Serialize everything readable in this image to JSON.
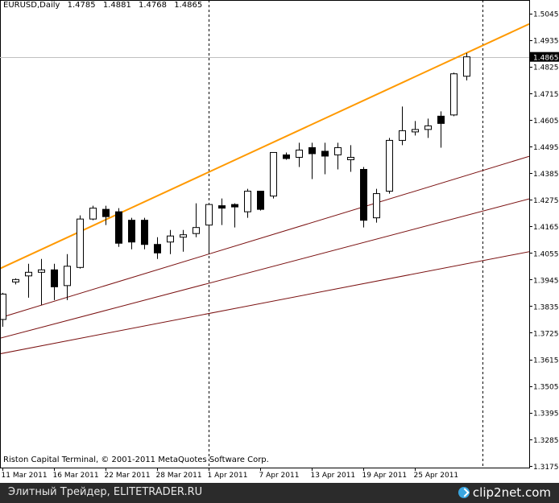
{
  "header": {
    "symbol": "EURUSD,Daily",
    "open": "1.4785",
    "high": "1.4881",
    "low": "1.4768",
    "close": "1.4865"
  },
  "copyright": "Riston Capital Terminal, © 2001-2011 MetaQuotes Software Corp.",
  "footer": {
    "left_text": "Элитный Трейдер, ELITETRADER.RU",
    "brand_text": "clip2net.com",
    "brand_icon": "clip2net-logo-icon"
  },
  "colors": {
    "background": "#ffffff",
    "frame": "#000000",
    "bull_body": "#ffffff",
    "bear_body": "#000000",
    "orange_line": "#ff9900",
    "red_lines": "#7a1010",
    "price_line": "#c0c0c0",
    "footer_bg": "#2b2b2b"
  },
  "chart_data": {
    "type": "candlestick",
    "title": "EURUSD,Daily",
    "y_range": [
      1.3168,
      1.51
    ],
    "y_ticks": [
      "1.5045",
      "1.4935",
      "1.4825",
      "1.4715",
      "1.4605",
      "1.4495",
      "1.4385",
      "1.4275",
      "1.4165",
      "1.4055",
      "1.3945",
      "1.3835",
      "1.3725",
      "1.3615",
      "1.3505",
      "1.3395",
      "1.3285",
      "1.3175"
    ],
    "x_labels": [
      {
        "bar": 0,
        "label": "11 Mar 2011"
      },
      {
        "bar": 4,
        "label": "16 Mar 2011"
      },
      {
        "bar": 8,
        "label": "22 Mar 2011"
      },
      {
        "bar": 12,
        "label": "28 Mar 2011"
      },
      {
        "bar": 16,
        "label": "1 Apr 2011"
      },
      {
        "bar": 20,
        "label": "7 Apr 2011"
      },
      {
        "bar": 24,
        "label": "13 Apr 2011"
      },
      {
        "bar": 28,
        "label": "19 Apr 2011"
      },
      {
        "bar": 32,
        "label": "25 Apr 2011"
      }
    ],
    "current_price": "1.4865",
    "candles": [
      {
        "o": 1.378,
        "h": 1.389,
        "l": 1.375,
        "c": 1.3885
      },
      {
        "o": 1.3935,
        "h": 1.395,
        "l": 1.3925,
        "c": 1.3945
      },
      {
        "o": 1.396,
        "h": 1.401,
        "l": 1.387,
        "c": 1.3975
      },
      {
        "o": 1.3975,
        "h": 1.403,
        "l": 1.384,
        "c": 1.3985
      },
      {
        "o": 1.3985,
        "h": 1.401,
        "l": 1.386,
        "c": 1.3915
      },
      {
        "o": 1.392,
        "h": 1.405,
        "l": 1.386,
        "c": 1.4
      },
      {
        "o": 1.3995,
        "h": 1.421,
        "l": 1.399,
        "c": 1.4195
      },
      {
        "o": 1.4195,
        "h": 1.425,
        "l": 1.419,
        "c": 1.424
      },
      {
        "o": 1.4235,
        "h": 1.425,
        "l": 1.417,
        "c": 1.4205
      },
      {
        "o": 1.4225,
        "h": 1.424,
        "l": 1.408,
        "c": 1.4095
      },
      {
        "o": 1.419,
        "h": 1.42,
        "l": 1.407,
        "c": 1.41
      },
      {
        "o": 1.419,
        "h": 1.42,
        "l": 1.407,
        "c": 1.409
      },
      {
        "o": 1.409,
        "h": 1.412,
        "l": 1.403,
        "c": 1.4055
      },
      {
        "o": 1.41,
        "h": 1.415,
        "l": 1.405,
        "c": 1.4125
      },
      {
        "o": 1.412,
        "h": 1.415,
        "l": 1.406,
        "c": 1.413
      },
      {
        "o": 1.4135,
        "h": 1.426,
        "l": 1.412,
        "c": 1.416
      },
      {
        "o": 1.417,
        "h": 1.426,
        "l": 1.405,
        "c": 1.4255
      },
      {
        "o": 1.425,
        "h": 1.428,
        "l": 1.417,
        "c": 1.424
      },
      {
        "o": 1.4255,
        "h": 1.426,
        "l": 1.416,
        "c": 1.4245
      },
      {
        "o": 1.4225,
        "h": 1.432,
        "l": 1.42,
        "c": 1.431
      },
      {
        "o": 1.431,
        "h": 1.431,
        "l": 1.423,
        "c": 1.4235
      },
      {
        "o": 1.429,
        "h": 1.447,
        "l": 1.428,
        "c": 1.447
      },
      {
        "o": 1.446,
        "h": 1.447,
        "l": 1.444,
        "c": 1.4445
      },
      {
        "o": 1.445,
        "h": 1.451,
        "l": 1.441,
        "c": 1.448
      },
      {
        "o": 1.449,
        "h": 1.451,
        "l": 1.436,
        "c": 1.4465
      },
      {
        "o": 1.4475,
        "h": 1.451,
        "l": 1.438,
        "c": 1.4455
      },
      {
        "o": 1.446,
        "h": 1.451,
        "l": 1.44,
        "c": 1.449
      },
      {
        "o": 1.444,
        "h": 1.45,
        "l": 1.439,
        "c": 1.445
      },
      {
        "o": 1.44,
        "h": 1.441,
        "l": 1.416,
        "c": 1.419
      },
      {
        "o": 1.42,
        "h": 1.432,
        "l": 1.418,
        "c": 1.43
      },
      {
        "o": 1.431,
        "h": 1.453,
        "l": 1.43,
        "c": 1.452
      },
      {
        "o": 1.452,
        "h": 1.466,
        "l": 1.45,
        "c": 1.456
      },
      {
        "o": 1.4555,
        "h": 1.46,
        "l": 1.454,
        "c": 1.4565
      },
      {
        "o": 1.4565,
        "h": 1.461,
        "l": 1.453,
        "c": 1.458
      },
      {
        "o": 1.462,
        "h": 1.464,
        "l": 1.449,
        "c": 1.459
      },
      {
        "o": 1.4625,
        "h": 1.48,
        "l": 1.462,
        "c": 1.4795
      },
      {
        "o": 1.4785,
        "h": 1.4881,
        "l": 1.4768,
        "c": 1.4865
      }
    ],
    "trend_lines": [
      {
        "name": "orange",
        "color": "#ff9900",
        "points": [
          {
            "bar": 0,
            "price": 1.3995
          },
          {
            "bar": 36,
            "price": 1.4881
          }
        ]
      },
      {
        "name": "red-1",
        "color": "#7a1010",
        "points": [
          {
            "bar": 0,
            "price": 1.379
          },
          {
            "bar": 36,
            "price": 1.4375
          }
        ]
      },
      {
        "name": "red-2",
        "color": "#7a1010",
        "points": [
          {
            "bar": 0,
            "price": 1.3705
          },
          {
            "bar": 36,
            "price": 1.421
          }
        ]
      },
      {
        "name": "red-3",
        "color": "#7a1010",
        "points": [
          {
            "bar": 0,
            "price": 1.364
          },
          {
            "bar": 36,
            "price": 1.401
          }
        ]
      }
    ],
    "period_separators": [
      {
        "bar": 16
      },
      {
        "bar": 37.25
      }
    ]
  }
}
